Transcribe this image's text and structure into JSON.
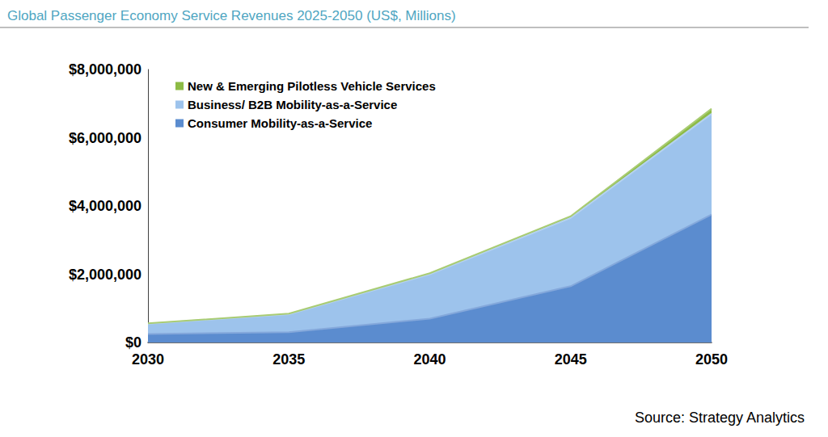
{
  "chart_data": {
    "type": "area",
    "title": "Global Passenger Economy Service Revenues 2025-2050 (US$, Millions)",
    "source": "Source: Strategy Analytics",
    "categories": [
      "2030",
      "2035",
      "2040",
      "2045",
      "2050"
    ],
    "series": [
      {
        "name": "Consumer Mobility-as-a-Service",
        "color": "#5b8ccf",
        "values": [
          250000,
          300000,
          700000,
          1650000,
          3750000
        ]
      },
      {
        "name": "Business/ B2B Mobility-as-a-Service",
        "color": "#9dc3ec",
        "values": [
          300000,
          530000,
          1300000,
          2000000,
          2950000
        ]
      },
      {
        "name": "New & Emerging Pilotless Vehicle Services",
        "color": "#8dbb45",
        "values": [
          10000,
          15000,
          30000,
          50000,
          150000
        ]
      }
    ],
    "ylim": [
      0,
      8000000
    ],
    "yticks": [
      {
        "value": 0,
        "label": "$0"
      },
      {
        "value": 2000000,
        "label": "$2,000,000"
      },
      {
        "value": 4000000,
        "label": "$4,000,000"
      },
      {
        "value": 6000000,
        "label": "$6,000,000"
      },
      {
        "value": 8000000,
        "label": "$8,000,000"
      }
    ],
    "stacked": true,
    "grid": false,
    "legend": "top-left"
  }
}
